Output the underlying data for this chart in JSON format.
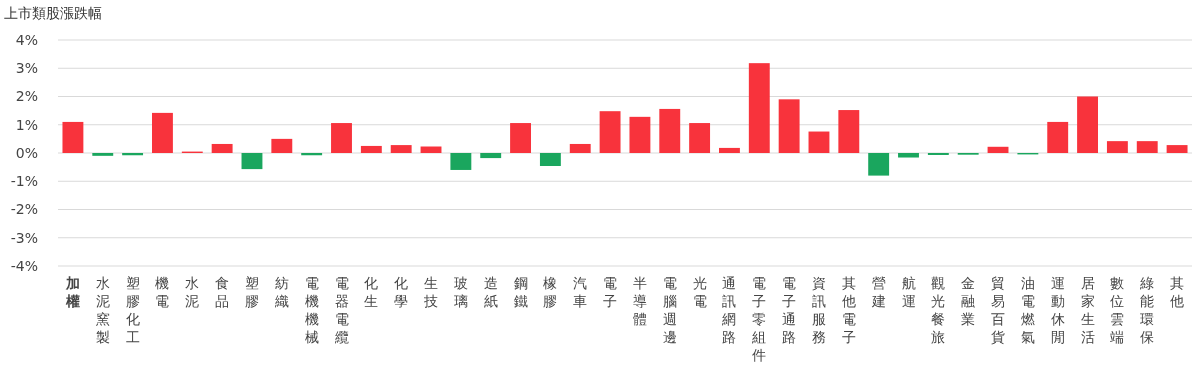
{
  "chart_data": {
    "type": "bar",
    "title": "上市類股漲跌幅",
    "categories": [
      "加權",
      "水泥窯製",
      "塑膠化工",
      "機電",
      "水泥",
      "食品",
      "塑膠",
      "紡織",
      "電機機械",
      "電器電纜",
      "化生",
      "化學",
      "生技",
      "玻璃",
      "造紙",
      "鋼鐵",
      "橡膠",
      "汽車",
      "電子",
      "半導體",
      "電腦週邊",
      "光電",
      "通訊網路",
      "電子零組件",
      "電子通路",
      "資訊服務",
      "其他電子",
      "營建",
      "航運",
      "觀光餐旅",
      "金融業",
      "貿易百貨",
      "油電燃氣",
      "運動休閒",
      "居家生活",
      "數位雲端",
      "綠能環保",
      "其他"
    ],
    "values": [
      1.1,
      -0.1,
      -0.08,
      1.42,
      0.05,
      0.32,
      -0.57,
      0.5,
      -0.08,
      1.06,
      0.25,
      0.28,
      0.23,
      -0.6,
      -0.18,
      1.06,
      -0.46,
      0.32,
      1.48,
      1.28,
      1.56,
      1.06,
      0.18,
      3.18,
      1.9,
      0.76,
      1.52,
      -0.8,
      -0.16,
      -0.07,
      -0.06,
      0.22,
      -0.05,
      1.1,
      2.0,
      0.42,
      0.42,
      0.28
    ],
    "colors": [
      "#f8333c",
      "#1aa65e",
      "#1aa65e",
      "#f8333c",
      "#f8333c",
      "#f8333c",
      "#1aa65e",
      "#f8333c",
      "#1aa65e",
      "#f8333c",
      "#f8333c",
      "#f8333c",
      "#f8333c",
      "#1aa65e",
      "#1aa65e",
      "#f8333c",
      "#1aa65e",
      "#f8333c",
      "#f8333c",
      "#f8333c",
      "#f8333c",
      "#f8333c",
      "#f8333c",
      "#f8333c",
      "#f8333c",
      "#f8333c",
      "#f8333c",
      "#1aa65e",
      "#1aa65e",
      "#1aa65e",
      "#1aa65e",
      "#f8333c",
      "#1aa65e",
      "#f8333c",
      "#f8333c",
      "#f8333c",
      "#f8333c",
      "#f8333c"
    ],
    "ylim": [
      -4,
      4
    ],
    "yticks": [
      {
        "value": -4,
        "label": "-4%"
      },
      {
        "value": -3,
        "label": "-3%"
      },
      {
        "value": -2,
        "label": "-2%"
      },
      {
        "value": -1,
        "label": "-1%"
      },
      {
        "value": 0,
        "label": "0%"
      },
      {
        "value": 1,
        "label": "1%"
      },
      {
        "value": 2,
        "label": "2%"
      },
      {
        "value": 3,
        "label": "3%"
      },
      {
        "value": 4,
        "label": "4%"
      }
    ],
    "grid": true
  }
}
